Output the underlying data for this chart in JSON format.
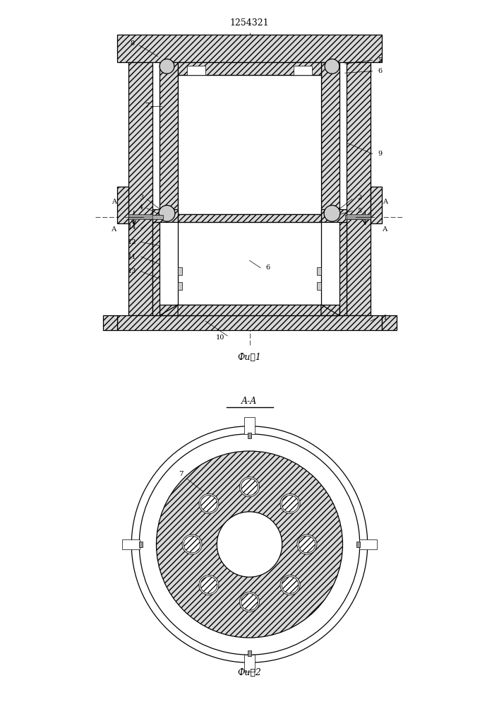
{
  "title": "1254321",
  "fig1_label": "Фи⸠1",
  "fig2_label": "Фи⸠2",
  "section_label": "A-A",
  "bg_color": "#ffffff",
  "line_color": "#000000",
  "hatch_color": "#000000"
}
